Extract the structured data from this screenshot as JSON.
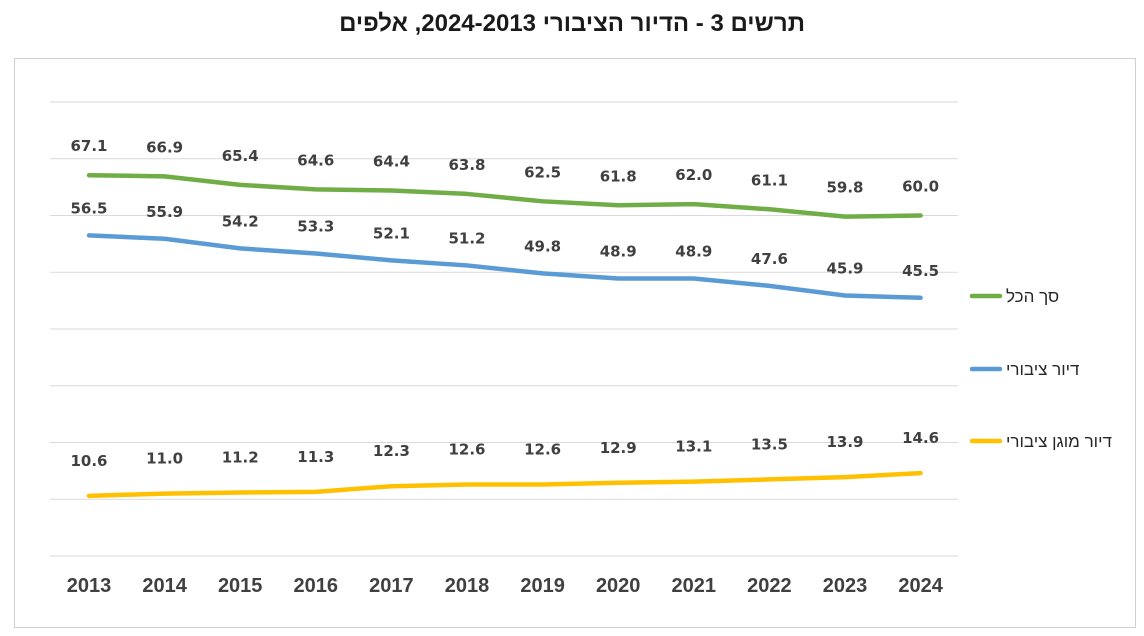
{
  "chart_data": {
    "type": "line",
    "title": "תרשים 3 - הדיור הציבורי 2024-2013, אלפים",
    "xlabel": "",
    "ylabel": "",
    "ylim": [
      0,
      80
    ],
    "grid": true,
    "legend_position": "right",
    "categories": [
      "2013",
      "2014",
      "2015",
      "2016",
      "2017",
      "2018",
      "2019",
      "2020",
      "2021",
      "2022",
      "2023",
      "2024"
    ],
    "series": [
      {
        "name": "סך הכל",
        "color": "#70ad47",
        "values": [
          67.1,
          66.9,
          65.4,
          64.6,
          64.4,
          63.8,
          62.5,
          61.8,
          62.0,
          61.1,
          59.8,
          60.0
        ]
      },
      {
        "name": "דיור ציבורי",
        "color": "#5b9bd5",
        "values": [
          56.5,
          55.9,
          54.2,
          53.3,
          52.1,
          51.2,
          49.8,
          48.9,
          48.9,
          47.6,
          45.9,
          45.5
        ]
      },
      {
        "name": "דיור מוגן ציבורי",
        "color": "#ffc000",
        "values": [
          10.6,
          11.0,
          11.2,
          11.3,
          12.3,
          12.6,
          12.6,
          12.9,
          13.1,
          13.5,
          13.9,
          14.6
        ]
      }
    ]
  }
}
